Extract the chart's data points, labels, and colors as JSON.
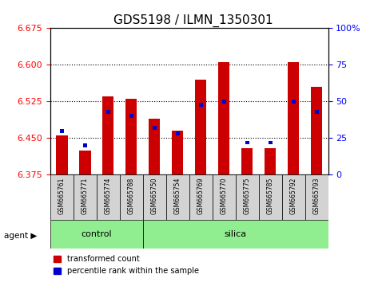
{
  "title": "GDS5198 / ILMN_1350301",
  "samples": [
    "GSM665761",
    "GSM665771",
    "GSM665774",
    "GSM665788",
    "GSM665750",
    "GSM665754",
    "GSM665769",
    "GSM665770",
    "GSM665775",
    "GSM665785",
    "GSM665792",
    "GSM665793"
  ],
  "groups": [
    "control",
    "control",
    "control",
    "control",
    "silica",
    "silica",
    "silica",
    "silica",
    "silica",
    "silica",
    "silica",
    "silica"
  ],
  "transformed_count": [
    6.455,
    6.425,
    6.535,
    6.53,
    6.49,
    6.465,
    6.57,
    6.605,
    6.43,
    6.43,
    6.605,
    6.555
  ],
  "percentile_rank": [
    30,
    20,
    43,
    40,
    32,
    28,
    48,
    50,
    22,
    22,
    50,
    43
  ],
  "ylim_left": [
    6.375,
    6.675
  ],
  "ylim_right": [
    0,
    100
  ],
  "yticks_left": [
    6.375,
    6.45,
    6.525,
    6.6,
    6.675
  ],
  "yticks_right": [
    0,
    25,
    50,
    75,
    100
  ],
  "bar_color": "#cc0000",
  "percentile_color": "#0000cc",
  "control_color": "#90ee90",
  "silica_color": "#90ee90",
  "grid_color": "#000000",
  "agent_label": "agent",
  "legend_items": [
    "transformed count",
    "percentile rank within the sample"
  ],
  "bar_width": 0.5
}
